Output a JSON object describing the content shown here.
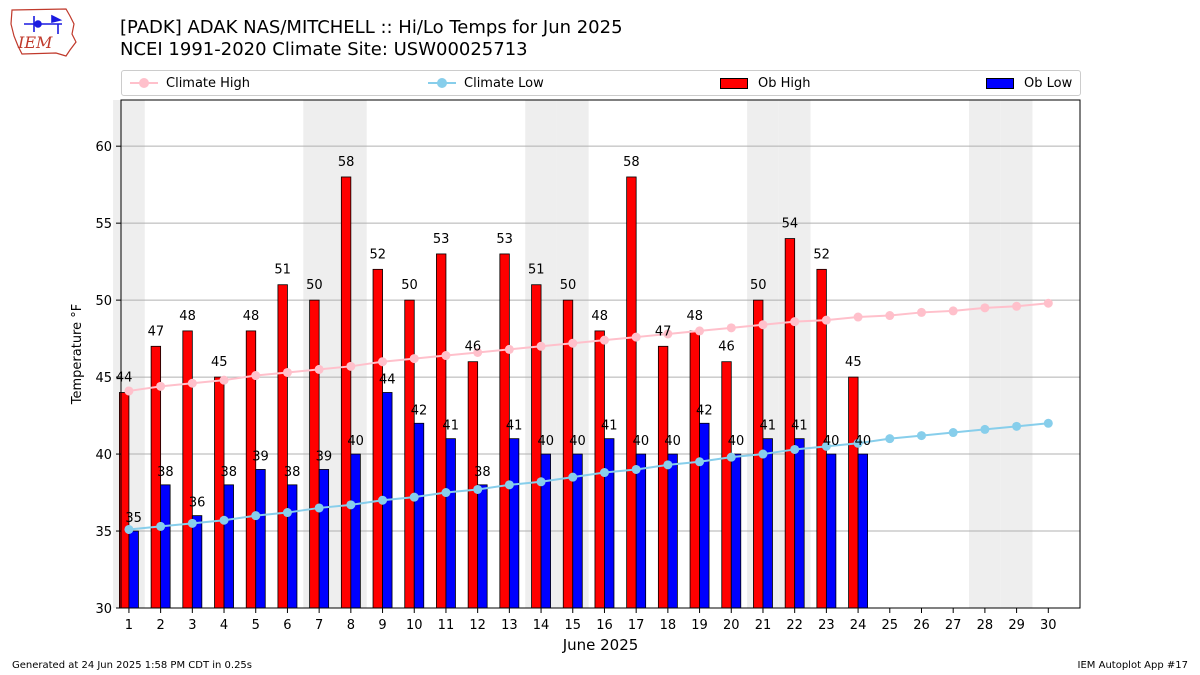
{
  "header": {
    "title_line1": "[PADK] ADAK NAS/MITCHELL :: Hi/Lo Temps for Jun 2025",
    "title_line2": "NCEI 1991-2020 Climate Site: USW00025713",
    "logo_text": "IEM"
  },
  "legend": {
    "climate_high": "Climate High",
    "climate_low": "Climate Low",
    "ob_high": "Ob High",
    "ob_low": "Ob Low"
  },
  "footer": {
    "left": "Generated at 24 Jun 2025 1:58 PM CDT in 0.25s",
    "right": "IEM Autoplot App #17"
  },
  "colors": {
    "ob_high": "#ff0000",
    "ob_low": "#0000ff",
    "climate_high": "#ffc0cb",
    "climate_low": "#87ceeb",
    "weekend_shade": "#eeeeee",
    "grid": "#b0b0b0"
  },
  "chart_data": {
    "type": "bar",
    "xlabel": "June 2025",
    "ylabel": "Temperature °F",
    "ylim": [
      30,
      63
    ],
    "yticks": [
      30,
      35,
      40,
      45,
      50,
      55,
      60
    ],
    "grid": "horizontal",
    "legend_position": "top",
    "days": [
      1,
      2,
      3,
      4,
      5,
      6,
      7,
      8,
      9,
      10,
      11,
      12,
      13,
      14,
      15,
      16,
      17,
      18,
      19,
      20,
      21,
      22,
      23,
      24,
      25,
      26,
      27,
      28,
      29,
      30
    ],
    "weekend_days": [
      1,
      7,
      8,
      14,
      15,
      21,
      22,
      28,
      29
    ],
    "series": [
      {
        "name": "Ob High",
        "kind": "bar",
        "values": [
          44,
          47,
          48,
          45,
          48,
          51,
          50,
          58,
          52,
          50,
          53,
          46,
          53,
          51,
          50,
          48,
          58,
          47,
          48,
          46,
          50,
          54,
          52,
          45
        ]
      },
      {
        "name": "Ob Low",
        "kind": "bar",
        "values": [
          35,
          38,
          36,
          38,
          39,
          38,
          39,
          40,
          44,
          42,
          41,
          38,
          41,
          40,
          40,
          41,
          40,
          40,
          42,
          40,
          41,
          41,
          40,
          40
        ]
      },
      {
        "name": "Climate High",
        "kind": "line",
        "values": [
          44.1,
          44.4,
          44.6,
          44.8,
          45.1,
          45.3,
          45.5,
          45.7,
          46.0,
          46.2,
          46.4,
          46.6,
          46.8,
          47.0,
          47.2,
          47.4,
          47.6,
          47.8,
          48.0,
          48.2,
          48.4,
          48.6,
          48.7,
          48.9,
          49.0,
          49.2,
          49.3,
          49.5,
          49.6,
          49.8
        ]
      },
      {
        "name": "Climate Low",
        "kind": "line",
        "values": [
          35.1,
          35.3,
          35.5,
          35.7,
          36.0,
          36.2,
          36.5,
          36.7,
          37.0,
          37.2,
          37.5,
          37.7,
          38.0,
          38.2,
          38.5,
          38.8,
          39.0,
          39.3,
          39.5,
          39.8,
          40.0,
          40.3,
          40.5,
          40.7,
          41.0,
          41.2,
          41.4,
          41.6,
          41.8,
          42.0
        ]
      }
    ]
  }
}
